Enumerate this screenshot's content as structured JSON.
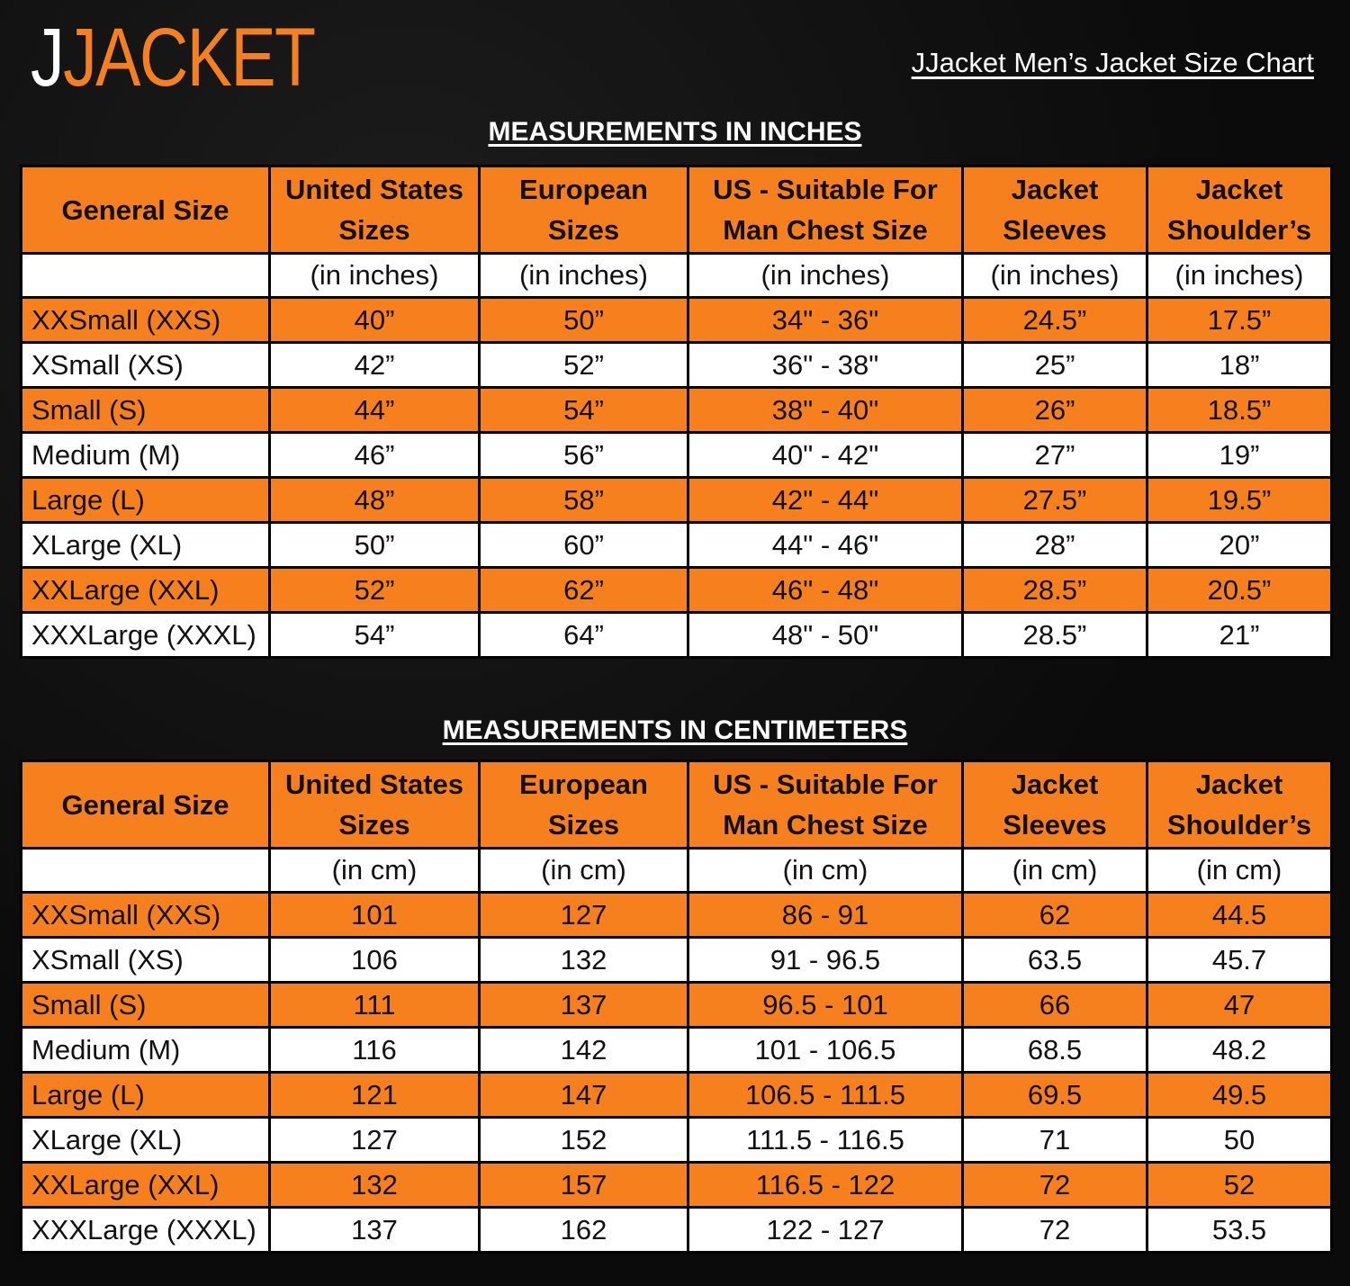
{
  "brand": {
    "logo_prefix": "J",
    "logo_rest": "JACKET"
  },
  "chart_title": "JJacket Men’s Jacket Size Chart",
  "colors": {
    "accent": "#f7801e",
    "background": "#0d0d0d"
  },
  "tables": [
    {
      "title": "MEASUREMENTS IN INCHES",
      "headers": [
        [
          "General Size",
          ""
        ],
        [
          "United States",
          "Sizes"
        ],
        [
          "European",
          "Sizes"
        ],
        [
          "US - Suitable For",
          "Man Chest Size"
        ],
        [
          "Jacket",
          "Sleeves"
        ],
        [
          "Jacket",
          "Shoulder’s"
        ]
      ],
      "units": [
        "",
        "(in inches)",
        "(in inches)",
        "(in inches)",
        "(in inches)",
        "(in inches)"
      ],
      "rows": [
        [
          "XXSmall (XXS)",
          "40”",
          "50”",
          "34\" - 36\"",
          "24.5”",
          "17.5”"
        ],
        [
          "XSmall (XS)",
          "42”",
          "52”",
          "36\" - 38\"",
          "25”",
          "18”"
        ],
        [
          "Small (S)",
          "44”",
          "54”",
          "38\" - 40\"",
          "26”",
          "18.5”"
        ],
        [
          "Medium (M)",
          "46”",
          "56”",
          "40\" - 42\"",
          "27”",
          "19”"
        ],
        [
          "Large (L)",
          "48”",
          "58”",
          "42\" - 44\"",
          "27.5”",
          "19.5”"
        ],
        [
          "XLarge (XL)",
          "50”",
          "60”",
          "44\" - 46\"",
          "28”",
          "20”"
        ],
        [
          "XXLarge (XXL)",
          "52”",
          "62”",
          "46\" - 48\"",
          "28.5”",
          "20.5”"
        ],
        [
          "XXXLarge (XXXL)",
          "54”",
          "64”",
          "48\" - 50\"",
          "28.5”",
          "21”"
        ]
      ]
    },
    {
      "title": "MEASUREMENTS IN CENTIMETERS",
      "headers": [
        [
          "General Size",
          ""
        ],
        [
          "United States",
          "Sizes"
        ],
        [
          "European",
          "Sizes"
        ],
        [
          "US - Suitable For",
          "Man Chest Size"
        ],
        [
          "Jacket",
          "Sleeves"
        ],
        [
          "Jacket",
          "Shoulder’s"
        ]
      ],
      "units": [
        "",
        "(in cm)",
        "(in cm)",
        "(in cm)",
        "(in cm)",
        "(in cm)"
      ],
      "rows": [
        [
          "XXSmall (XXS)",
          "101",
          "127",
          "86 - 91",
          "62",
          "44.5"
        ],
        [
          "XSmall (XS)",
          "106",
          "132",
          "91 - 96.5",
          "63.5",
          "45.7"
        ],
        [
          "Small (S)",
          "111",
          "137",
          "96.5 - 101",
          "66",
          "47"
        ],
        [
          "Medium (M)",
          "116",
          "142",
          "101 - 106.5",
          "68.5",
          "48.2"
        ],
        [
          "Large (L)",
          "121",
          "147",
          "106.5 - 111.5",
          "69.5",
          "49.5"
        ],
        [
          "XLarge (XL)",
          "127",
          "152",
          "111.5 - 116.5",
          "71",
          "50"
        ],
        [
          "XXLarge (XXL)",
          "132",
          "157",
          "116.5 - 122",
          "72",
          "52"
        ],
        [
          "XXXLarge (XXXL)",
          "137",
          "162",
          "122 - 127",
          "72",
          "53.5"
        ]
      ]
    }
  ]
}
